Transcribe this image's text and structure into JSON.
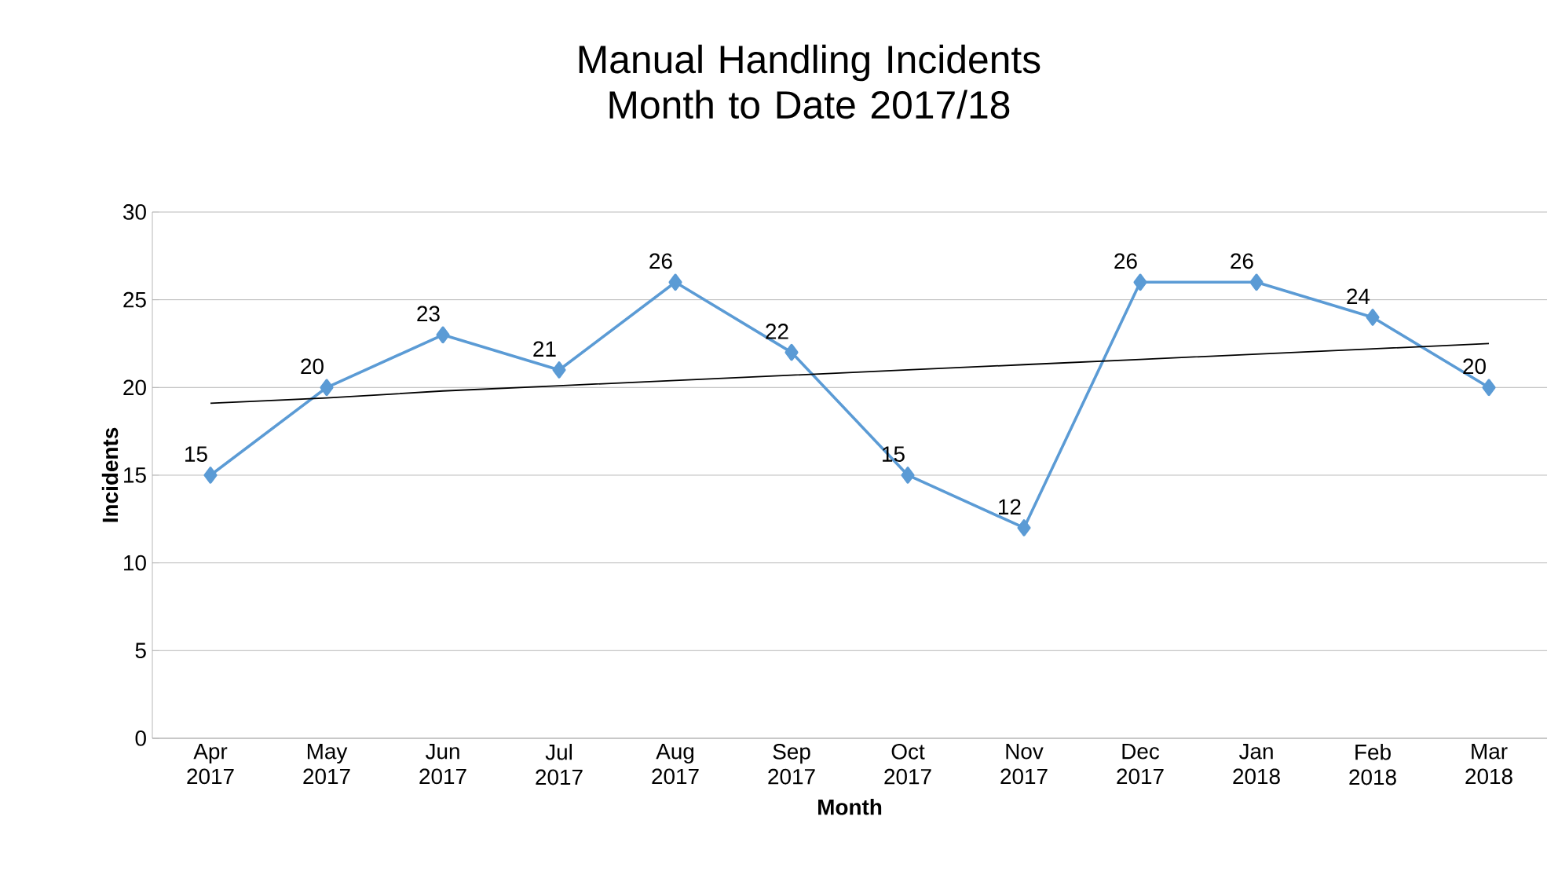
{
  "chart_data": {
    "type": "line",
    "title": "Manual Handling Incidents Month to Date 2017/18",
    "xlabel": "Month",
    "ylabel": "Incidents",
    "categories": [
      "Apr 2017",
      "May 2017",
      "Jun 2017",
      "Jul 2017",
      "Aug 2017",
      "Sep 2017",
      "Oct 2017",
      "Nov 2017",
      "Dec 2017",
      "Jan 2018",
      "Feb 2018",
      "Mar 2018"
    ],
    "series": [
      {
        "color": "#5b9bd5",
        "marker": "diamond",
        "data_labels": true,
        "values": [
          15,
          20,
          23,
          21,
          26,
          22,
          15,
          12,
          26,
          26,
          24,
          20
        ]
      },
      {
        "color": "#000000",
        "marker": "none",
        "values": [
          19.1,
          19.4,
          19.8,
          20.1,
          20.4,
          20.7,
          21.0,
          21.3,
          21.6,
          21.9,
          22.2,
          22.5
        ]
      }
    ],
    "ylim": [
      0,
      30
    ],
    "yticks": [
      0,
      5,
      10,
      15,
      20,
      25,
      30
    ],
    "grid": "y"
  }
}
